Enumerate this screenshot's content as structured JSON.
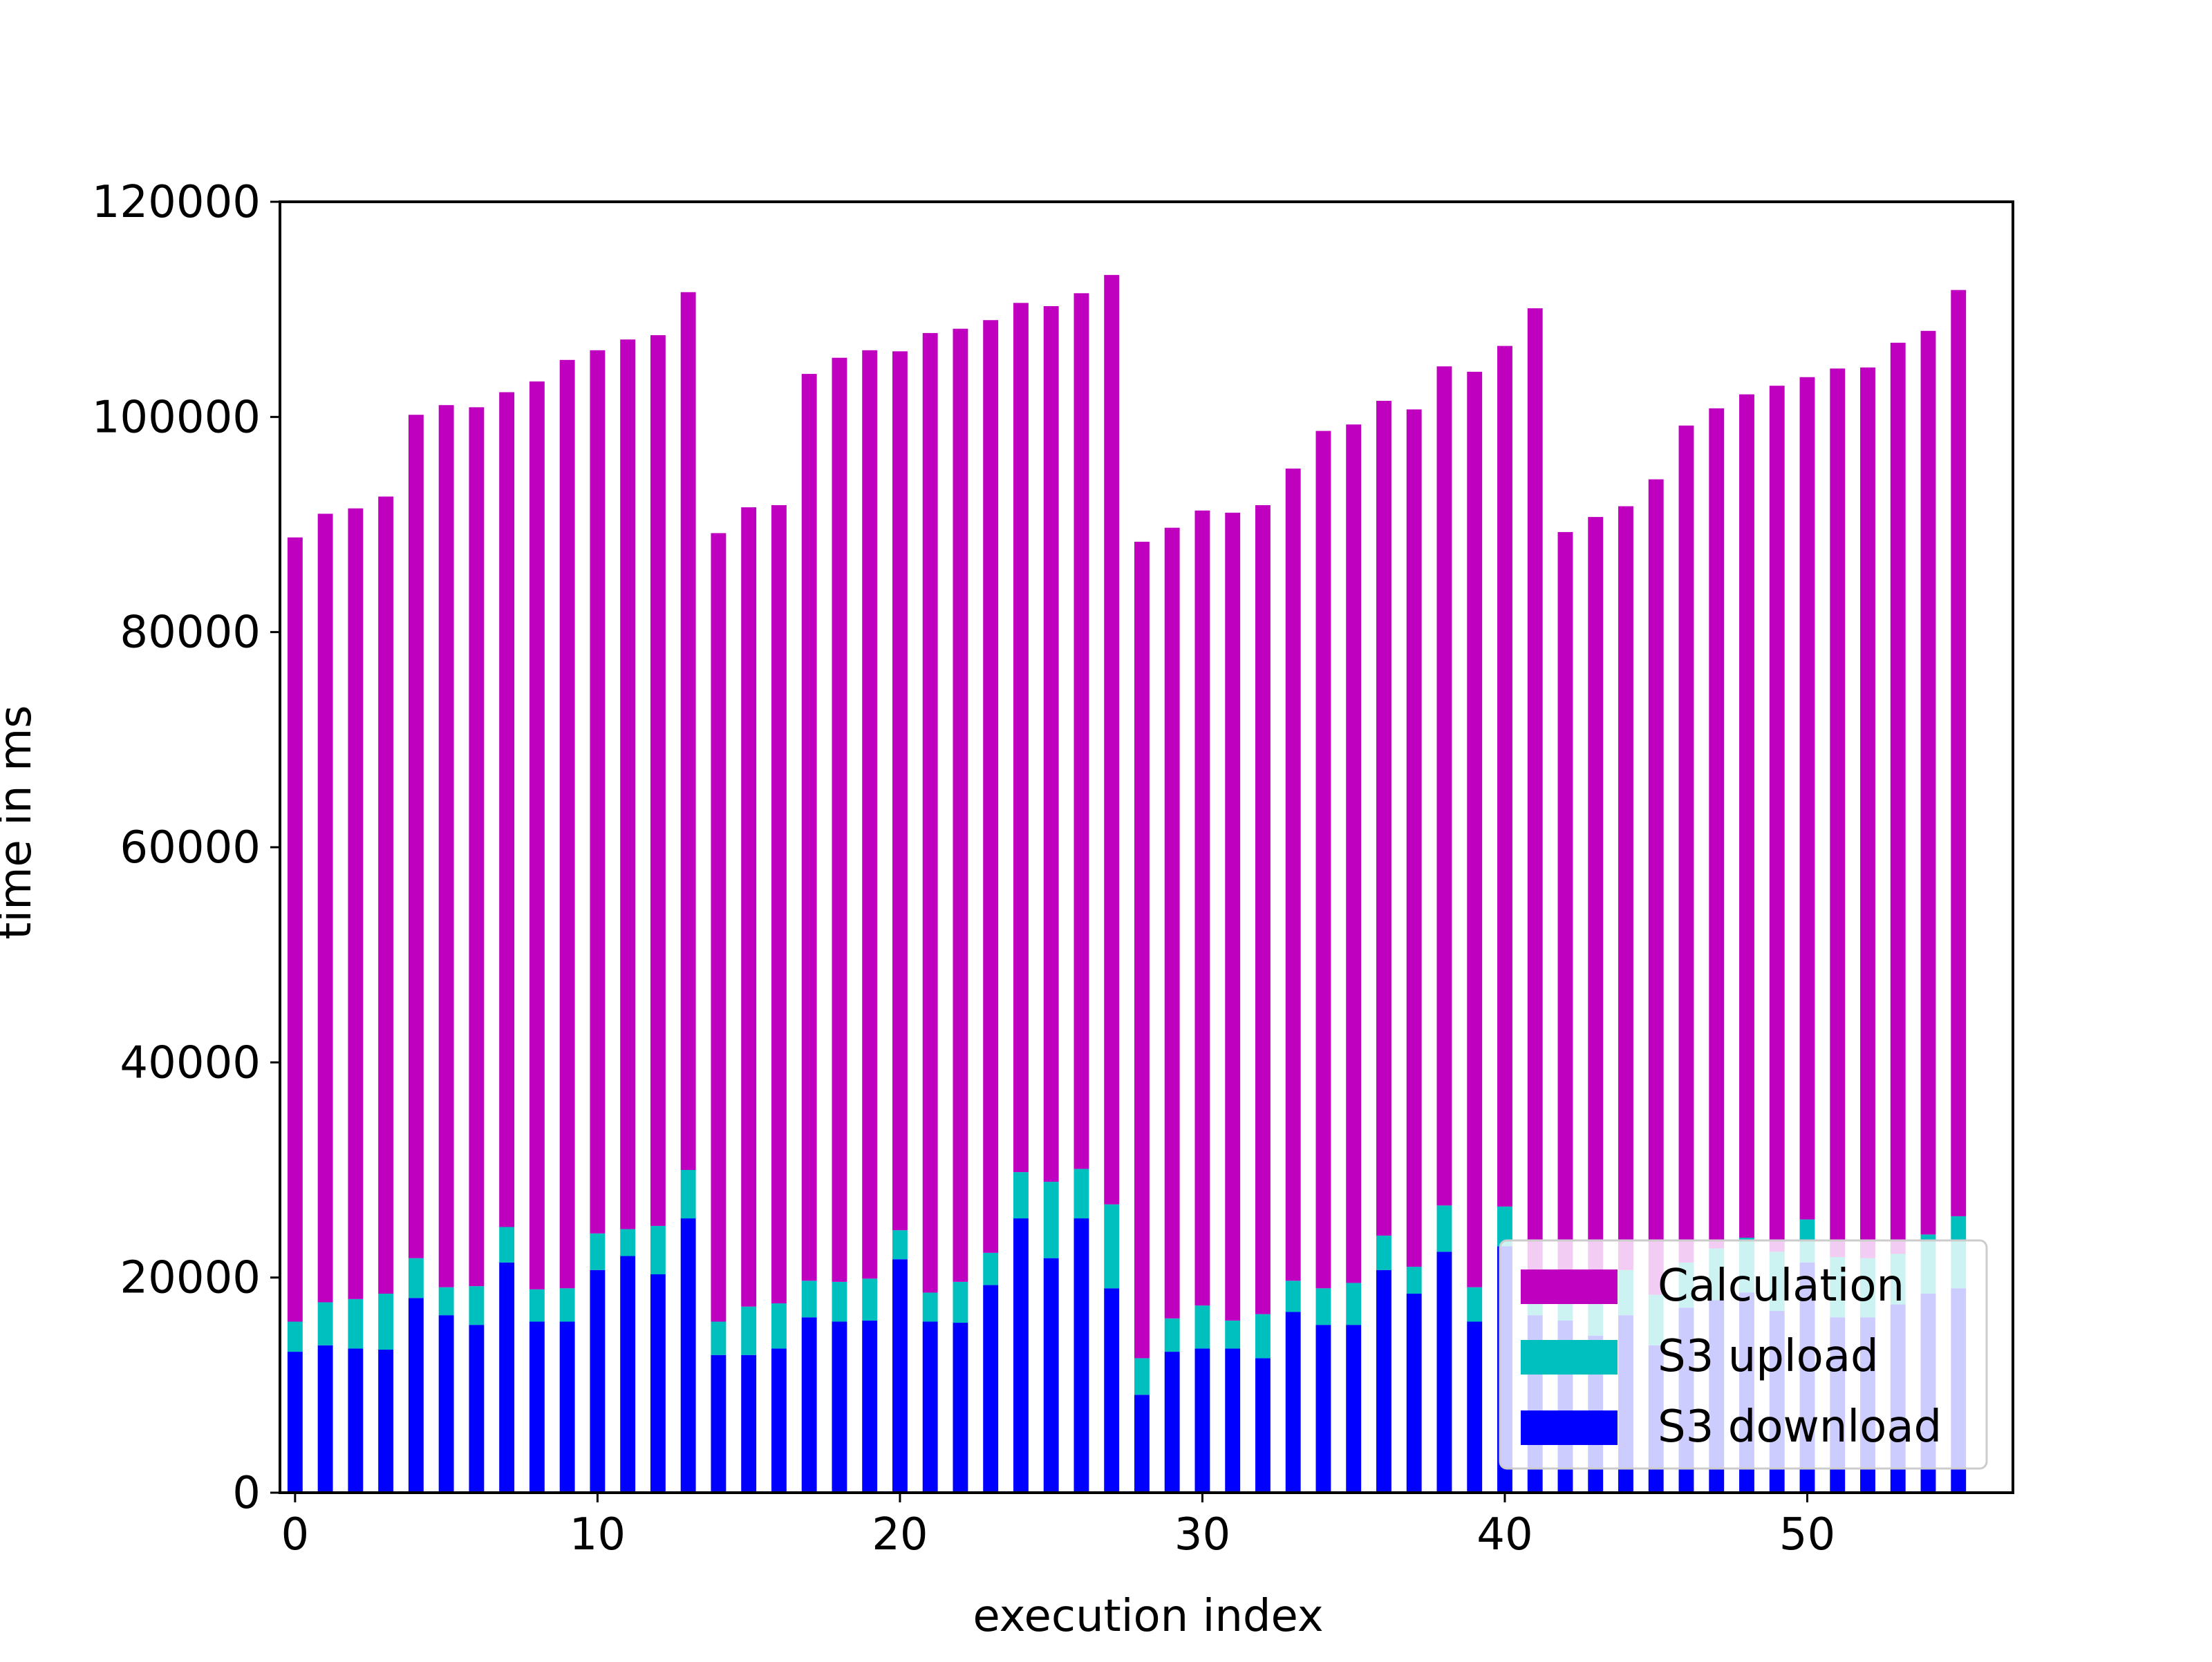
{
  "chart_data": {
    "type": "bar",
    "stacked": true,
    "title": "",
    "xlabel": "execution index",
    "ylabel": "time in ms",
    "xlim": [
      -0.5,
      56.8
    ],
    "ylim": [
      0,
      120000
    ],
    "xticks": [
      0,
      10,
      20,
      30,
      40,
      50
    ],
    "xtick_labels": [
      "0",
      "10",
      "20",
      "30",
      "40",
      "50"
    ],
    "yticks": [
      0,
      20000,
      40000,
      60000,
      80000,
      100000,
      120000
    ],
    "ytick_labels": [
      "0",
      "20000",
      "40000",
      "60000",
      "80000",
      "100000",
      "120000"
    ],
    "grid": false,
    "legend_position": "lower-right",
    "x": [
      0,
      1,
      2,
      3,
      4,
      5,
      6,
      7,
      8,
      9,
      10,
      11,
      12,
      13,
      14,
      15,
      16,
      17,
      18,
      19,
      20,
      21,
      22,
      23,
      24,
      25,
      26,
      27,
      28,
      29,
      30,
      31,
      32,
      33,
      34,
      35,
      36,
      37,
      38,
      39,
      40,
      41,
      42,
      43,
      44,
      45,
      46,
      47,
      48,
      49,
      50,
      51,
      52,
      53,
      54,
      55
    ],
    "series": [
      {
        "name": "S3 download",
        "color": "#0000ff",
        "values": [
          13100,
          13700,
          13400,
          13300,
          18100,
          16500,
          15600,
          21400,
          15900,
          15900,
          20700,
          22000,
          20300,
          25500,
          12800,
          12800,
          13400,
          16300,
          15900,
          16000,
          21700,
          15900,
          15800,
          19300,
          25500,
          21800,
          25500,
          19000,
          9100,
          13100,
          13400,
          13400,
          12500,
          16800,
          15600,
          15600,
          20700,
          18500,
          22400,
          15900,
          22900,
          16500,
          16000,
          14600,
          16500,
          13700,
          17200,
          17900,
          18600,
          16900,
          21400,
          16300,
          16300,
          17500,
          18500,
          19000
        ]
      },
      {
        "name": "S3 upload",
        "color": "#00bfbf",
        "values": [
          2800,
          4000,
          4600,
          5200,
          3700,
          2600,
          3600,
          3300,
          3000,
          3100,
          3400,
          2500,
          4500,
          4500,
          3100,
          4500,
          4200,
          3400,
          3700,
          3900,
          2700,
          2700,
          3800,
          3000,
          4300,
          7100,
          4600,
          7800,
          3400,
          3100,
          4000,
          2600,
          4100,
          2900,
          3400,
          3900,
          3200,
          2500,
          4300,
          3200,
          3700,
          3800,
          4000,
          3500,
          4200,
          4700,
          4200,
          4800,
          5100,
          5500,
          4000,
          5600,
          5500,
          4700,
          5500,
          6700
        ]
      },
      {
        "name": "Calculation",
        "color": "#bf00bf",
        "values": [
          72900,
          73300,
          73500,
          74100,
          78400,
          82000,
          81700,
          77600,
          84400,
          86300,
          82100,
          82700,
          82800,
          81600,
          73300,
          74300,
          74200,
          84300,
          85900,
          86300,
          81700,
          89200,
          88600,
          86700,
          80800,
          81400,
          81400,
          86400,
          75900,
          73500,
          73900,
          75100,
          75200,
          75500,
          79700,
          79800,
          77600,
          79700,
          78000,
          85100,
          80000,
          89800,
          69300,
          72600,
          71000,
          75800,
          77800,
          78100,
          78400,
          80500,
          78300,
          82600,
          82800,
          84700,
          84000,
          86100
        ]
      }
    ]
  }
}
